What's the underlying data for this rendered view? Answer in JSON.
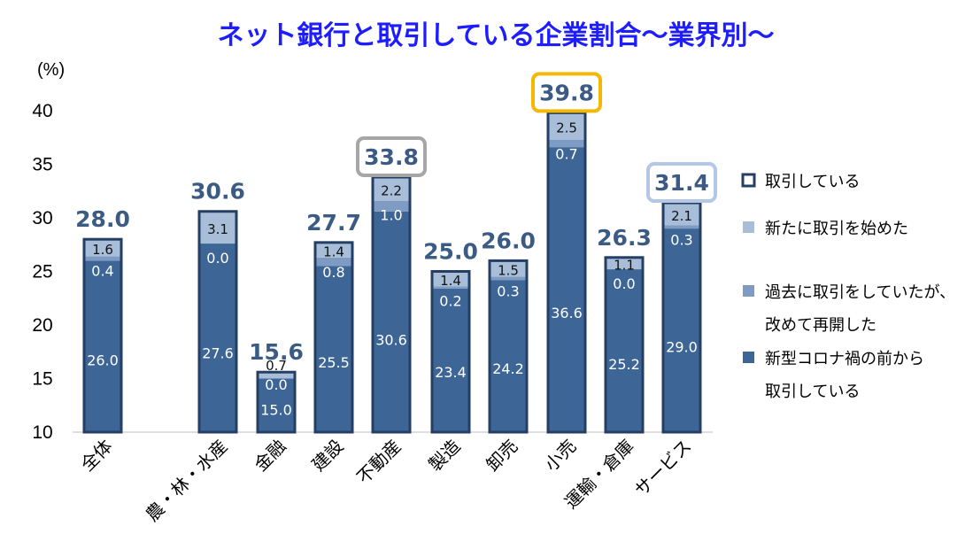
{
  "chart_data": {
    "type": "bar",
    "title": "ネット銀行と取引している企業割合～業界別～",
    "ylabel": "(%)",
    "ylim": [
      10,
      40
    ],
    "yticks": [
      10,
      15,
      20,
      25,
      30,
      35,
      40
    ],
    "categories": [
      "全体",
      "農・林・水産",
      "金融",
      "建設",
      "不動産",
      "製造",
      "卸売",
      "小売",
      "運輸・倉庫",
      "サービス"
    ],
    "totals": [
      28.0,
      30.6,
      15.6,
      27.7,
      33.8,
      25.0,
      26.0,
      39.8,
      26.3,
      31.4
    ],
    "total_labels": [
      "28.0",
      "30.6",
      "15.6",
      "27.7",
      "33.8",
      "25.0",
      "26.0",
      "39.8",
      "26.3",
      "31.4"
    ],
    "series": [
      {
        "name": "新型コロナ禍の前から取引している",
        "values": [
          26.0,
          27.6,
          15.0,
          25.5,
          30.6,
          23.4,
          24.2,
          36.6,
          25.2,
          29.0
        ],
        "labels": [
          "26.0",
          "27.6",
          "15.0",
          "25.5",
          "30.6",
          "23.4",
          "24.2",
          "36.6",
          "25.2",
          "29.0"
        ]
      },
      {
        "name": "過去に取引をしていたが、改めて再開した",
        "values": [
          0.4,
          0.0,
          0.0,
          0.8,
          1.0,
          0.2,
          0.3,
          0.7,
          0.0,
          0.3
        ],
        "labels": [
          "0.4",
          "0.0",
          "0.0",
          "0.8",
          "1.0",
          "0.2",
          "0.3",
          "0.7",
          "0.0",
          "0.3"
        ]
      },
      {
        "name": "新たに取引を始めた",
        "values": [
          1.6,
          3.1,
          0.7,
          1.4,
          2.2,
          1.4,
          1.5,
          2.5,
          1.1,
          2.1
        ],
        "labels": [
          "1.6",
          "3.1",
          "0.7",
          "1.4",
          "2.2",
          "1.4",
          "1.5",
          "2.5",
          "1.1",
          "2.1"
        ]
      }
    ],
    "highlights": [
      {
        "category": "不動産",
        "color": "#a6a6a6"
      },
      {
        "category": "小売",
        "color": "#f5b800"
      },
      {
        "category": "サービス",
        "color": "#b4c7e7"
      }
    ],
    "legend": {
      "position": "right",
      "items": [
        {
          "label_lines": [
            "取引している"
          ],
          "swatch": "outline"
        },
        {
          "label_lines": [
            "新たに取引を始めた"
          ],
          "swatch": "light"
        },
        {
          "label_lines": [
            "過去に取引をしていたが、",
            "改めて再開した"
          ],
          "swatch": "mid"
        },
        {
          "label_lines": [
            "新型コロナ禍の前から",
            "取引している"
          ],
          "swatch": "dark"
        }
      ]
    },
    "colors": {
      "base": "#3d6595",
      "resumed": "#7e9bc3",
      "new": "#a8bed8",
      "outline": "#243f63",
      "total_text": "#3b5b84",
      "title_text": "#1d1dff"
    }
  }
}
